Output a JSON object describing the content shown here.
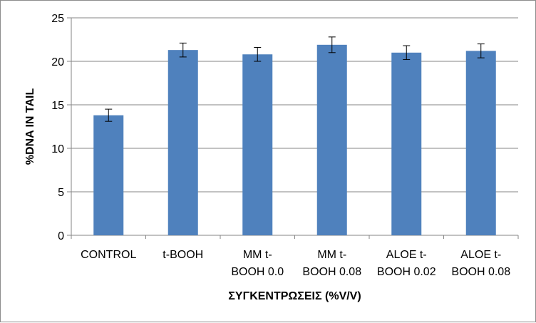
{
  "chart_data": {
    "type": "bar",
    "categories": [
      [
        "CONTROL"
      ],
      [
        "t-BOOH"
      ],
      [
        "MM t-",
        "BOOH 0.0"
      ],
      [
        "MM t-",
        "BOOH 0.08"
      ],
      [
        "ALOE t-",
        "BOOH 0.02"
      ],
      [
        "ALOE t-",
        "BOOH 0.08"
      ]
    ],
    "values": [
      13.8,
      21.3,
      20.8,
      21.9,
      21.0,
      21.2
    ],
    "errors": [
      0.7,
      0.8,
      0.8,
      0.9,
      0.8,
      0.8
    ],
    "title": "",
    "xlabel": "ΣΥΓΚΕΝΤΡΩΣΕΙΣ (%V/V)",
    "ylabel": "%DNA IN TAIL",
    "ylim": [
      0,
      25
    ],
    "yticks": [
      0,
      5,
      10,
      15,
      20,
      25
    ],
    "grid": true,
    "bar_color": "#4f81bd",
    "grid_color": "#868686"
  }
}
